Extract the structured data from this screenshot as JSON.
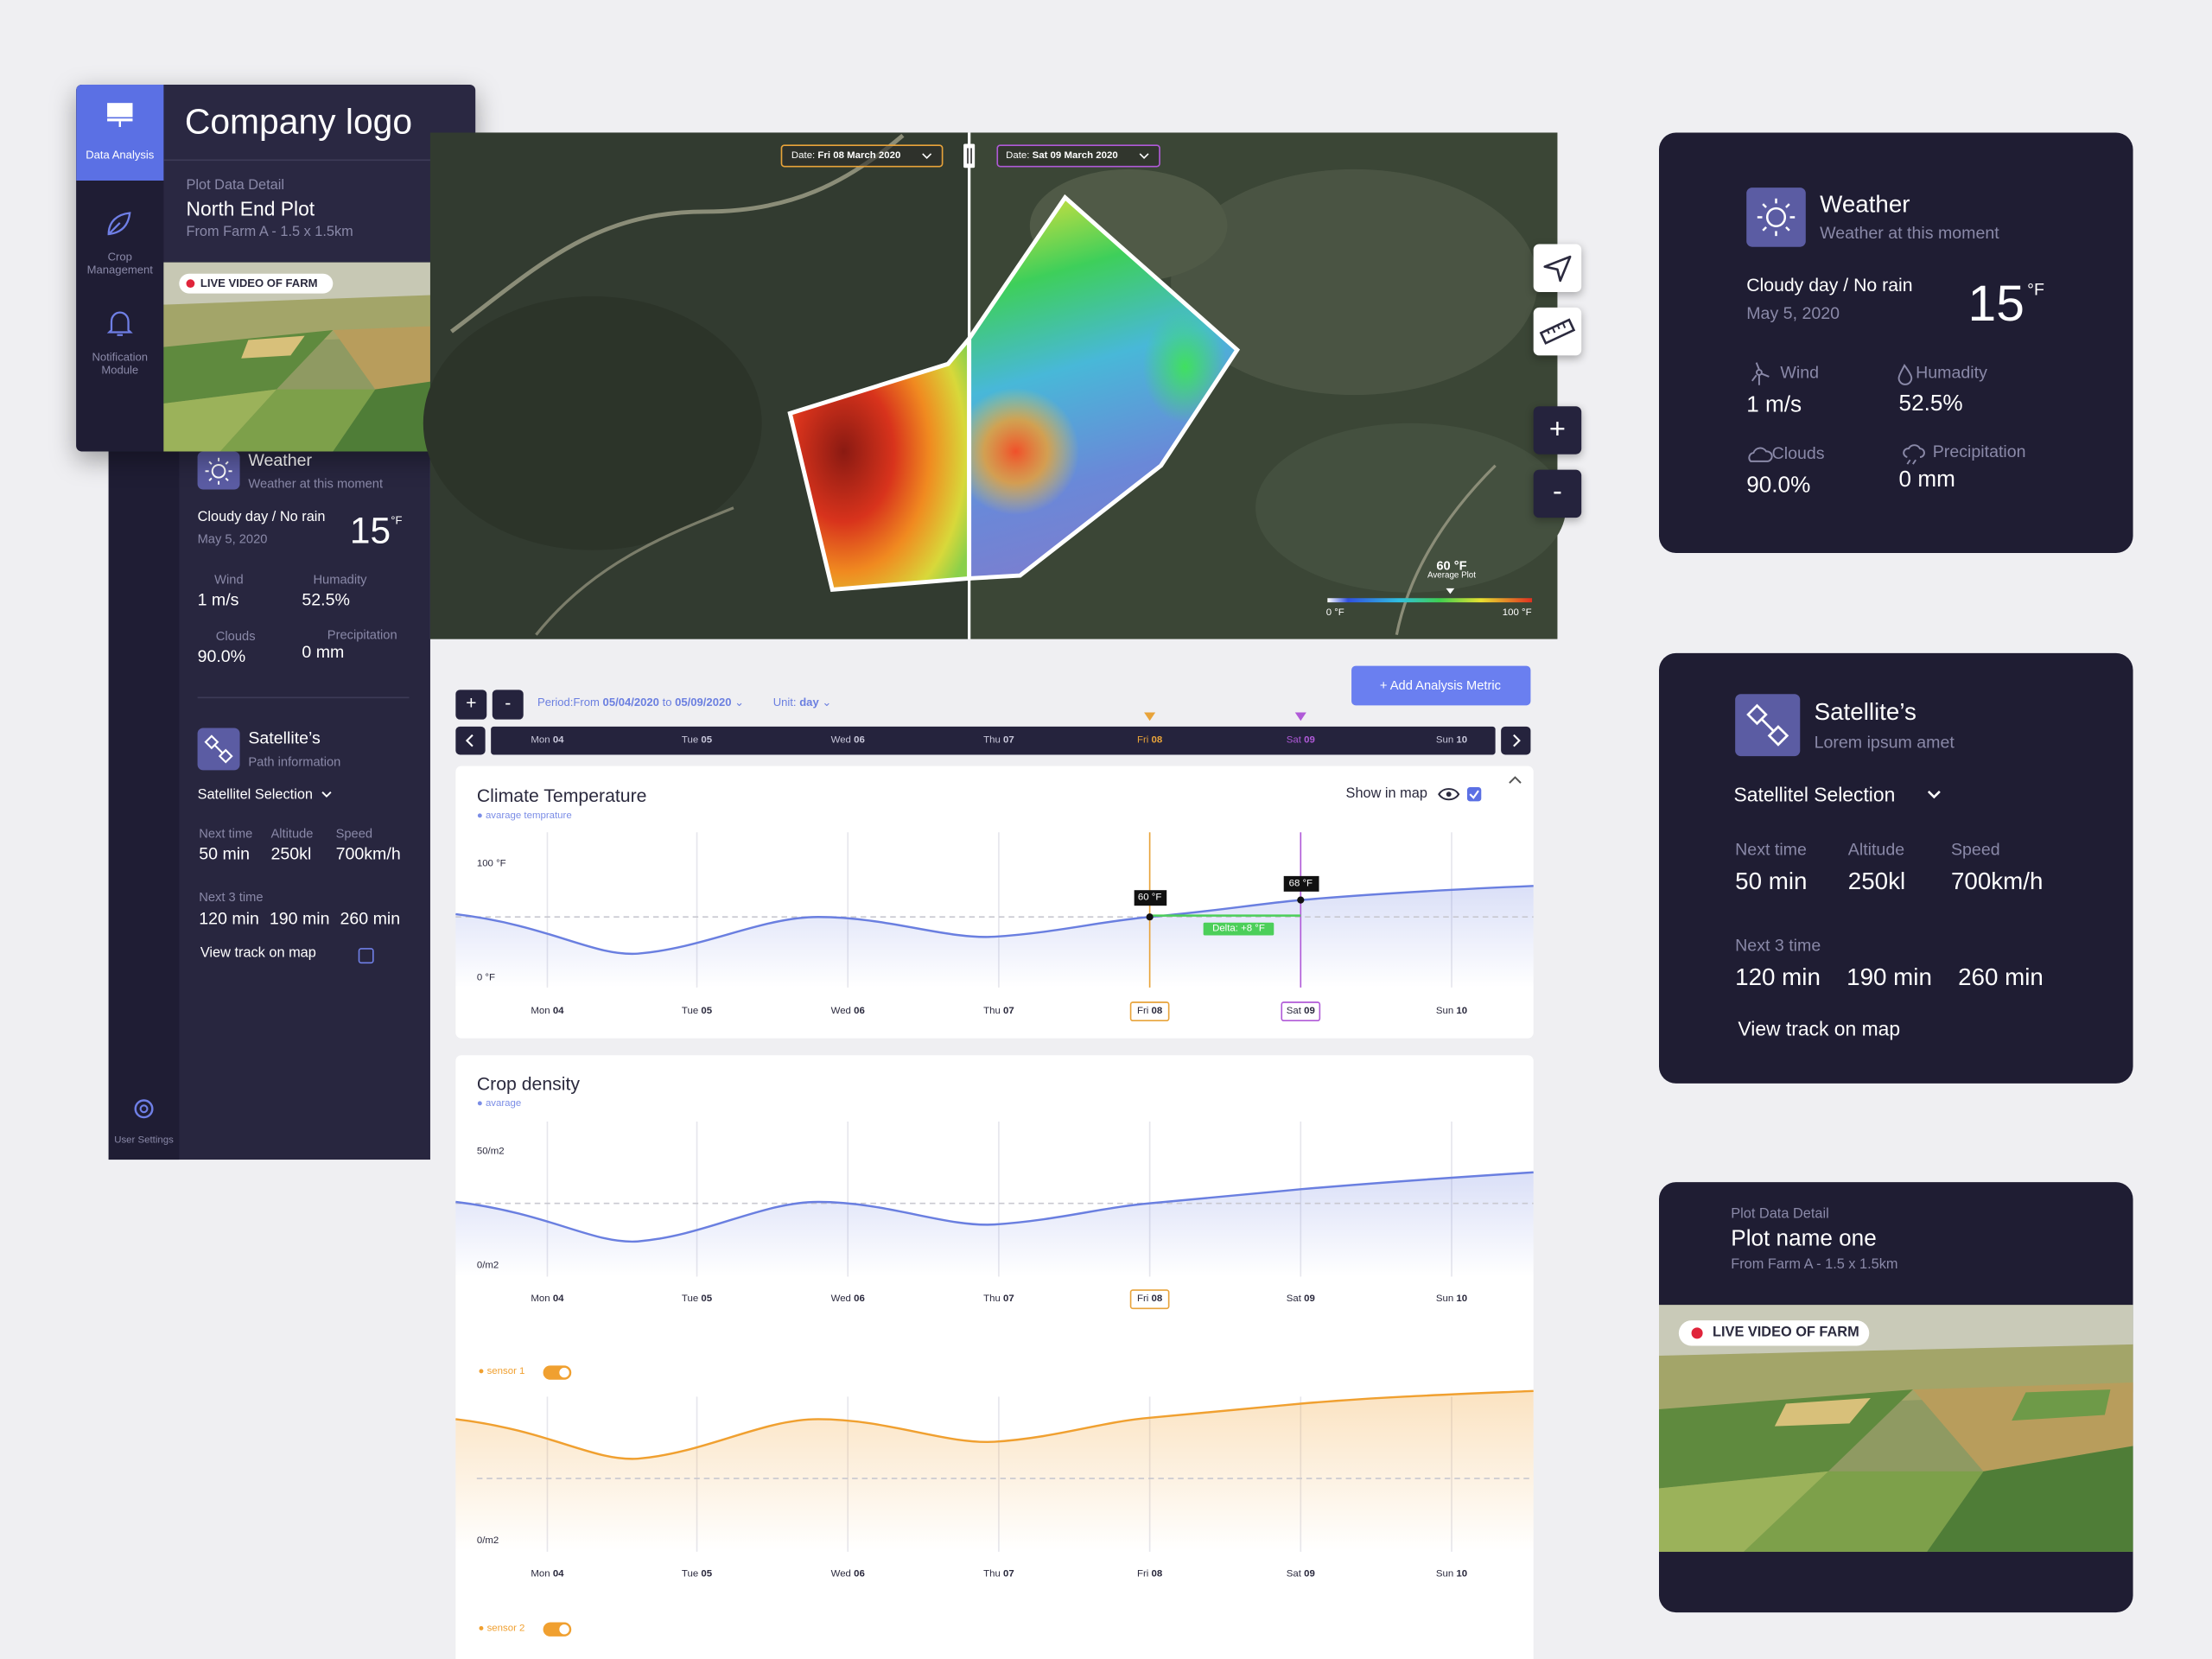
{
  "nav": {
    "items": [
      "Data Analysis",
      "Crop Management",
      "Notification Module"
    ],
    "settings": "User Settings"
  },
  "brand": "Company logo",
  "sidebar_plot": {
    "label": "Plot Data Detail",
    "name": "North End Plot",
    "size": "From Farm A - 1.5 x 1.5km",
    "live": "LIVE VIDEO OF FARM"
  },
  "sidebar_weather": {
    "title": "Weather",
    "subtitle": "Weather at this moment",
    "condition": "Cloudy day / No rain",
    "date": "May 5, 2020",
    "temperature": "15",
    "unit": "°F",
    "stats": [
      {
        "label": "Wind",
        "value": "1 m/s"
      },
      {
        "label": "Humadity",
        "value": "52.5%"
      },
      {
        "label": "Clouds",
        "value": "90.0%"
      },
      {
        "label": "Precipitation",
        "value": "0 mm"
      }
    ]
  },
  "sidebar_satellite": {
    "title": "Satellite’s",
    "subtitle": "Path information",
    "selection": "Satellitel Selection",
    "stats": [
      {
        "label": "Next time",
        "value": "50 min"
      },
      {
        "label": "Altitude",
        "value": "250kl"
      },
      {
        "label": "Speed",
        "value": "700km/h"
      }
    ],
    "next_label": "Next 3 time",
    "next_times": [
      "120 min",
      "190 min",
      "260 min"
    ],
    "track": "View track on map"
  },
  "map": {
    "date_left": {
      "label": "Date:",
      "value": "Fri 08 March 2020"
    },
    "date_right": {
      "label": "Date:",
      "value": "Sat 09 March 2020"
    },
    "zoom_in": "+",
    "zoom_out": "-",
    "legend": {
      "value": "60 °F",
      "label": "Average Plot",
      "min": "0 °F",
      "max": "100 °F"
    }
  },
  "controls": {
    "zoom_in": "+",
    "zoom_out": "-",
    "period_label": "Period:From",
    "period_from": "05/04/2020",
    "period_to_label": "to",
    "period_to": "05/09/2020",
    "unit_label": "Unit:",
    "unit": "day",
    "add_metric": "+ Add Analysis Metric"
  },
  "days": [
    {
      "dow": "Mon",
      "num": "04"
    },
    {
      "dow": "Tue",
      "num": "05"
    },
    {
      "dow": "Wed",
      "num": "06"
    },
    {
      "dow": "Thu",
      "num": "07"
    },
    {
      "dow": "Fri",
      "num": "08"
    },
    {
      "dow": "Sat",
      "num": "09"
    },
    {
      "dow": "Sun",
      "num": "10"
    }
  ],
  "climate": {
    "title": "Climate Temperature",
    "legend": "avarage temprature",
    "show_in_map": "Show in map",
    "y_max": "100 °F",
    "y_min": "0 °F",
    "marker_left": "60 °F",
    "marker_right": "68 °F",
    "delta": "Delta: +8 °F"
  },
  "crop": {
    "title": "Crop density",
    "legend": "avarage",
    "y_max": "50/m2",
    "y_min": "0/m2",
    "sensors": [
      {
        "name": "sensor 1",
        "y_min": "0/m2"
      },
      {
        "name": "sensor 2"
      }
    ]
  },
  "right_weather": {
    "title": "Weather",
    "subtitle": "Weather at this moment",
    "condition": "Cloudy day / No rain",
    "date": "May 5, 2020",
    "temperature": "15",
    "unit": "°F",
    "stats": [
      {
        "label": "Wind",
        "value": "1 m/s"
      },
      {
        "label": "Humadity",
        "value": "52.5%"
      },
      {
        "label": "Clouds",
        "value": "90.0%"
      },
      {
        "label": "Precipitation",
        "value": "0 mm"
      }
    ]
  },
  "right_satellite": {
    "title": "Satellite’s",
    "subtitle": "Lorem ipsum amet",
    "selection": "Satellitel Selection",
    "stats": [
      {
        "label": "Next time",
        "value": "50 min"
      },
      {
        "label": "Altitude",
        "value": "250kl"
      },
      {
        "label": "Speed",
        "value": "700km/h"
      }
    ],
    "next_label": "Next 3 time",
    "next_times": [
      "120 min",
      "190 min",
      "260 min"
    ],
    "track": "View track on map"
  },
  "right_plot": {
    "label": "Plot Data Detail",
    "name": "Plot name one",
    "size": "From Farm A - 1.5 x 1.5km",
    "live": "LIVE VIDEO OF FARM"
  }
}
